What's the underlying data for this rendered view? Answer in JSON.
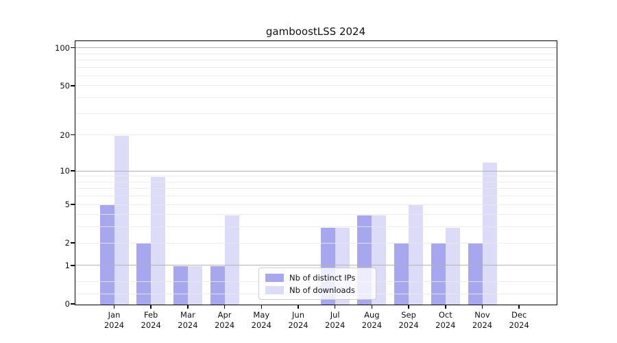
{
  "chart_data": {
    "type": "bar",
    "title": "gamboostLSS 2024",
    "categories": [
      "Jan 2024",
      "Feb 2024",
      "Mar 2024",
      "Apr 2024",
      "May 2024",
      "Jun 2024",
      "Jul 2024",
      "Aug 2024",
      "Sep 2024",
      "Oct 2024",
      "Nov 2024",
      "Dec 2024"
    ],
    "series": [
      {
        "name": "Nb of distinct IPs",
        "color": "#a7a7f0",
        "values": [
          5,
          2,
          1,
          1,
          0,
          0,
          3,
          4,
          2,
          2,
          2,
          0
        ]
      },
      {
        "name": "Nb of downloads",
        "color": "#dcdcf8",
        "values": [
          20,
          9,
          1,
          4,
          0,
          0,
          3,
          4,
          5,
          3,
          12,
          0
        ]
      }
    ],
    "y_scale": "log1p",
    "ylim": [
      0,
      113
    ],
    "y_tick_labels": [
      0,
      1,
      2,
      5,
      10,
      20,
      50,
      100
    ],
    "y_major_gridlines": [
      1,
      10,
      100
    ],
    "y_minor_gridlines": [
      0.2,
      0.5,
      2,
      3,
      4,
      5,
      6,
      7,
      8,
      9,
      20,
      30,
      40,
      50,
      60,
      70,
      80,
      90
    ],
    "grid": "horizontal",
    "legend_position": "inside-lower-center",
    "colors": {
      "major_grid": "#b2b2b2",
      "minor_grid": "#eaeaea",
      "spine": "#000000"
    }
  }
}
